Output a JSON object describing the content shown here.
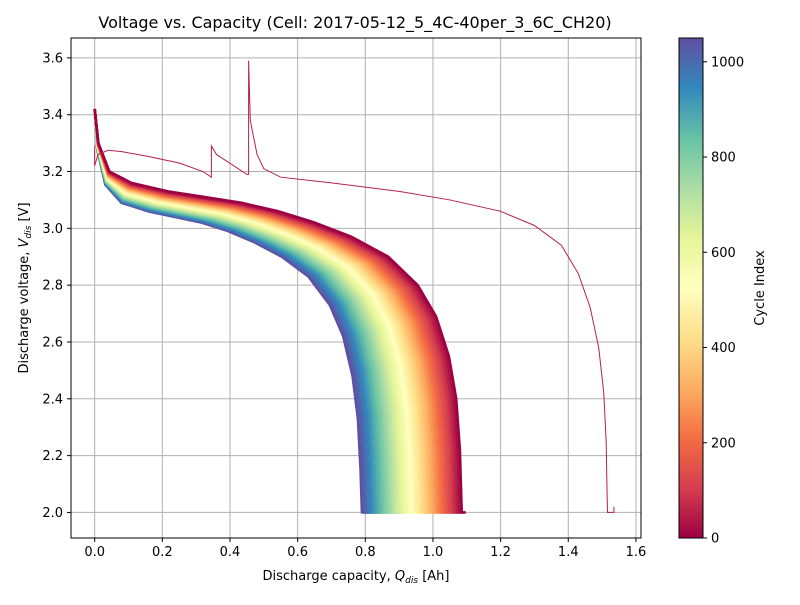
{
  "chart_data": {
    "type": "line",
    "title": "Voltage vs. Capacity (Cell: 2017-05-12_5_4C-40per_3_6C_CH20)",
    "xlabel": "Discharge capacity, ",
    "xlabel_var": "Q",
    "xlabel_sub": "dis",
    "xlabel_unit": " [Ah]",
    "ylabel": "Discharge voltage, ",
    "ylabel_var": "V",
    "ylabel_sub": "dis",
    "ylabel_unit": " [V]",
    "xlim": [
      -0.07,
      1.615
    ],
    "ylim": [
      1.91,
      3.67
    ],
    "xticks": [
      0.0,
      0.2,
      0.4,
      0.6,
      0.8,
      1.0,
      1.2,
      1.4,
      1.6
    ],
    "xtick_labels": [
      "0.0",
      "0.2",
      "0.4",
      "0.6",
      "0.8",
      "1.0",
      "1.2",
      "1.4",
      "1.6"
    ],
    "yticks": [
      2.0,
      2.2,
      2.4,
      2.6,
      2.8,
      3.0,
      3.2,
      3.4,
      3.6
    ],
    "ytick_labels": [
      "2.0",
      "2.2",
      "2.4",
      "2.6",
      "2.8",
      "3.0",
      "3.2",
      "3.4",
      "3.6"
    ],
    "grid": true,
    "colormap": "Spectral",
    "colorbar": {
      "label": "Cycle Index",
      "min": 0,
      "max": 1050,
      "ticks": [
        0,
        200,
        400,
        600,
        800,
        1000
      ],
      "tick_labels": [
        "0",
        "200",
        "400",
        "600",
        "800",
        "1000"
      ],
      "colors": [
        "#9e0142",
        "#d53e4f",
        "#f46d43",
        "#fdae61",
        "#fee08b",
        "#ffffbf",
        "#e6f598",
        "#abdda4",
        "#66c2a5",
        "#3288bd",
        "#5e4fa2"
      ]
    },
    "cycle_curves": {
      "cycle_start": 0,
      "cycle_end": 1050,
      "cycle_step": 25,
      "end_capacity_at_cycle_0": 1.085,
      "end_capacity_at_cycle_1050": 0.79,
      "end_voltage": 2.0,
      "curve_shape": [
        [
          0.0,
          3.42
        ],
        [
          0.01,
          3.3
        ],
        [
          0.04,
          3.2
        ],
        [
          0.1,
          3.16
        ],
        [
          0.2,
          3.13
        ],
        [
          0.3,
          3.11
        ],
        [
          0.4,
          3.09
        ],
        [
          0.5,
          3.06
        ],
        [
          0.6,
          3.02
        ],
        [
          0.7,
          2.97
        ],
        [
          0.8,
          2.9
        ],
        [
          0.88,
          2.8
        ],
        [
          0.93,
          2.69
        ],
        [
          0.965,
          2.55
        ],
        [
          0.985,
          2.4
        ],
        [
          0.995,
          2.22
        ],
        [
          1.0,
          2.0
        ]
      ]
    },
    "series": [
      {
        "cycle": 0,
        "color": "#b5204e",
        "points": [
          [
            0.0,
            3.29
          ],
          [
            0.0,
            3.22
          ],
          [
            0.005,
            3.24
          ],
          [
            0.01,
            3.26
          ],
          [
            0.03,
            3.27
          ],
          [
            0.04,
            3.275
          ],
          [
            0.08,
            3.27
          ],
          [
            0.15,
            3.255
          ],
          [
            0.25,
            3.23
          ],
          [
            0.32,
            3.2
          ],
          [
            0.345,
            3.18
          ],
          [
            0.345,
            3.29
          ],
          [
            0.36,
            3.26
          ],
          [
            0.45,
            3.19
          ],
          [
            0.455,
            3.19
          ],
          [
            0.455,
            3.59
          ],
          [
            0.46,
            3.38
          ],
          [
            0.48,
            3.26
          ],
          [
            0.5,
            3.21
          ],
          [
            0.55,
            3.18
          ],
          [
            0.7,
            3.16
          ],
          [
            0.9,
            3.13
          ],
          [
            1.05,
            3.1
          ],
          [
            1.2,
            3.06
          ],
          [
            1.3,
            3.01
          ],
          [
            1.38,
            2.94
          ],
          [
            1.43,
            2.84
          ],
          [
            1.465,
            2.72
          ],
          [
            1.49,
            2.58
          ],
          [
            1.505,
            2.42
          ],
          [
            1.512,
            2.25
          ],
          [
            1.515,
            2.05
          ],
          [
            1.516,
            2.0
          ],
          [
            1.535,
            2.0
          ],
          [
            1.535,
            2.02
          ]
        ]
      }
    ]
  }
}
